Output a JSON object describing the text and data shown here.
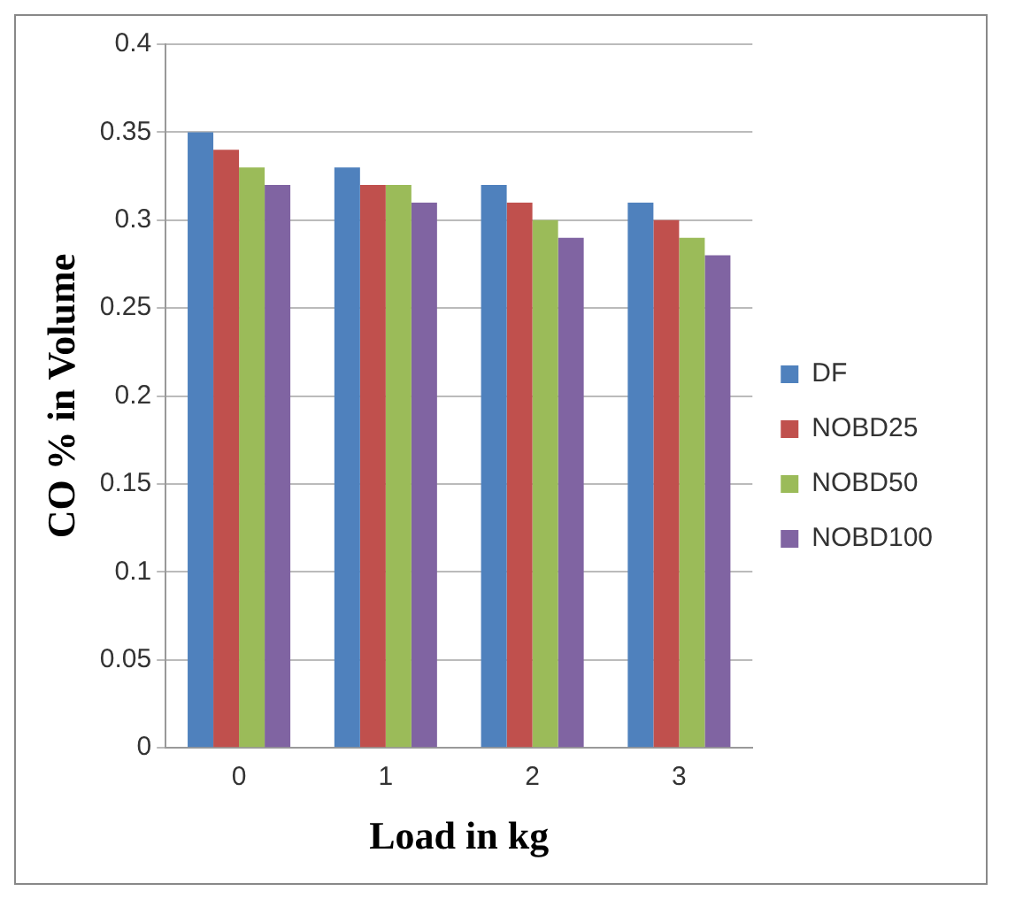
{
  "chart_data": {
    "type": "bar",
    "xlabel": "Load in kg",
    "ylabel": "CO % in Volume",
    "categories": [
      "0",
      "1",
      "2",
      "3"
    ],
    "series": [
      {
        "name": "DF",
        "color": "#4f81bd",
        "values": [
          0.35,
          0.33,
          0.32,
          0.31
        ]
      },
      {
        "name": "NOBD25",
        "color": "#c0504d",
        "values": [
          0.34,
          0.32,
          0.31,
          0.3
        ]
      },
      {
        "name": "NOBD50",
        "color": "#9bbb59",
        "values": [
          0.33,
          0.32,
          0.3,
          0.29
        ]
      },
      {
        "name": "NOBD100",
        "color": "#8064a2",
        "values": [
          0.32,
          0.31,
          0.29,
          0.28
        ]
      }
    ],
    "ylim": [
      0,
      0.4
    ],
    "yticks": [
      0,
      0.05,
      0.1,
      0.15,
      0.2,
      0.25,
      0.3,
      0.35,
      0.4
    ],
    "grid": "y",
    "legend": "right"
  }
}
